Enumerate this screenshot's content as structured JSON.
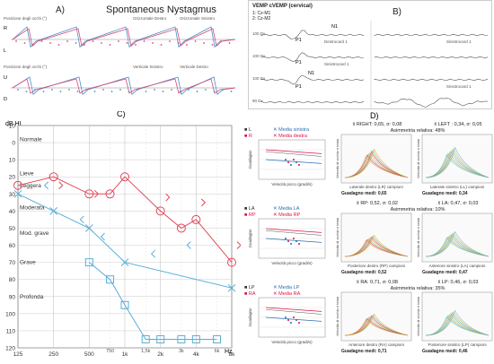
{
  "panelA": {
    "letter": "A)",
    "title": "Spontaneous Nystagmus",
    "top_legend": {
      "left": "Posizione degli occhi (°)",
      "c1": "Orizzontale Destro",
      "c2": "Orizzontale Sinistro"
    },
    "bottom_legend": {
      "left": "Posizione degli occhi (°)",
      "c1": "Verticale Sinistro",
      "c2": "Verticale Destro"
    },
    "top_marks": [
      "R",
      "L"
    ],
    "bottom_marks": [
      "U",
      "D"
    ],
    "colors": {
      "blue": "#4a90c2",
      "pink": "#d6477a"
    }
  },
  "panelB": {
    "letter": "B)",
    "heading": "VEMP  cVEMP (cervical)",
    "channels": [
      "1: Cz-M1",
      "2: Cz-M2"
    ],
    "peaks": [
      "P1",
      "N1",
      "P1",
      "N1",
      "P1"
    ],
    "row_labels": [
      "100 Dx",
      "100 Dx",
      "100 Dx",
      "90 Dx"
    ],
    "right_tags": [
      "Destrocard 1",
      "Sinistrocard 1",
      "Sinistrocard 1",
      "Sinistrocard 1"
    ]
  },
  "panelC": {
    "letter": "C)",
    "ylabel": "dB HL",
    "unit": "Hz",
    "y_ticks": [
      "-10",
      "0",
      "10",
      "20",
      "30",
      "40",
      "50",
      "60",
      "70",
      "80",
      "90",
      "100",
      "110",
      "120"
    ],
    "x_ticks": [
      "125",
      "250",
      "500",
      "1k",
      "2k",
      "4k",
      "8k"
    ],
    "x_minor": [
      "750",
      "1,5k",
      "3k",
      "6k"
    ],
    "categories": [
      "Normale",
      "Lieve",
      "Leggera",
      "Moderata",
      "Mod. grave",
      "Grave",
      "Profonda"
    ],
    "colors": {
      "right": "#e0485a",
      "left": "#5aaed8"
    },
    "series": [
      {
        "symbol": "circle",
        "points": [
          [
            125,
            25
          ],
          [
            250,
            20
          ],
          [
            500,
            30
          ],
          [
            750,
            30
          ],
          [
            1000,
            20
          ],
          [
            2000,
            40
          ],
          [
            3000,
            50
          ],
          [
            4000,
            45
          ],
          [
            8000,
            70
          ]
        ]
      },
      {
        "symbol": "x",
        "points": [
          [
            125,
            30
          ],
          [
            250,
            40
          ],
          [
            500,
            50
          ],
          [
            1000,
            70
          ],
          [
            8000,
            85
          ]
        ]
      },
      {
        "symbol": "square",
        "points": [
          [
            500,
            70
          ],
          [
            750,
            80
          ],
          [
            1000,
            95
          ],
          [
            1500,
            115
          ],
          [
            2000,
            115
          ],
          [
            3000,
            115
          ],
          [
            4000,
            115
          ],
          [
            6000,
            115
          ]
        ]
      }
    ]
  },
  "panelD": {
    "letter": "D)",
    "rows": [
      {
        "legend": [
          "L",
          "R",
          "Media sinistra",
          "Media destra"
        ],
        "xlabel": "Velocità picco (gradi/s)",
        "ylabel": "Guadagno",
        "stat_left": "x̄ RIGHT: 0,65, σ: 0,08",
        "stat_right": "x̄ LEFT : 0,34, σ: 0,05",
        "asym": "Asimmetria relativa: 48%",
        "trace_left_x": "Laterale destro (LR) campioni",
        "trace_right_x": "Laterale sinistro (LL) campioni",
        "gain_left": "Guadagno medi: 0,65",
        "gain_right": "Guadagno medi: 0,34"
      },
      {
        "legend": [
          "LA",
          "RP",
          "Media LA",
          "Media RP"
        ],
        "xlabel": "Velocità picco (gradi/s)",
        "ylabel": "Guadagno",
        "stat_left": "x̄ RP: 0,52, σ: 0,02",
        "stat_right": "x̄ LA: 0,47, σ: 0,03",
        "asym": "Asimmetria relativa: 10%",
        "trace_left_x": "Posteriore destro (RP) campioni",
        "trace_right_x": "Anteriore sinistro (LA) campioni",
        "gain_left": "Guadagno medi: 0,52",
        "gain_right": "Guadagno medi: 0,47"
      },
      {
        "legend": [
          "LP",
          "RA",
          "Media LP",
          "Media RA"
        ],
        "xlabel": "Velocità picco (gradi/s)",
        "ylabel": "Guadagno",
        "stat_left": "x̄ RA: 0,71, σ: 0,08",
        "stat_right": "x̄ LP: 0,46, σ: 0,03",
        "asym": "Asimmetria relativa: 35%",
        "trace_left_x": "Anteriore destro (RA) campioni",
        "trace_right_x": "Posteriore sinistro (LP) campioni",
        "gain_left": "Guadagno medi: 0,71",
        "gain_right": "Guadagno medi: 0,46"
      }
    ],
    "trace_ylabel": "Velocità di occhio e testa"
  }
}
